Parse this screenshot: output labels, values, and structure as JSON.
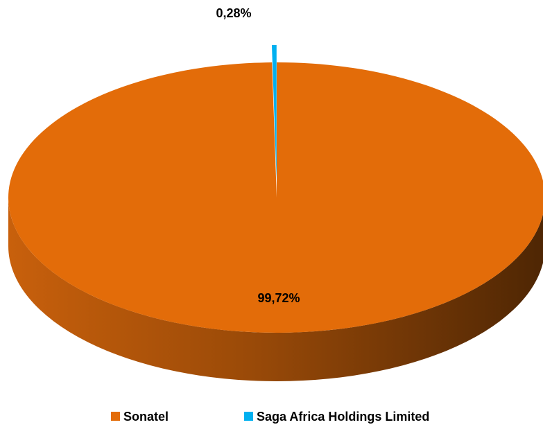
{
  "chart_data": {
    "type": "pie",
    "categories": [
      "Sonatel",
      "Saga Africa Holdings Limited"
    ],
    "values": [
      99.72,
      0.28
    ],
    "value_labels": [
      "99,72%",
      "0,28%"
    ],
    "colors": [
      "#e36c09",
      "#00b0f0"
    ],
    "legend": "bottom"
  }
}
